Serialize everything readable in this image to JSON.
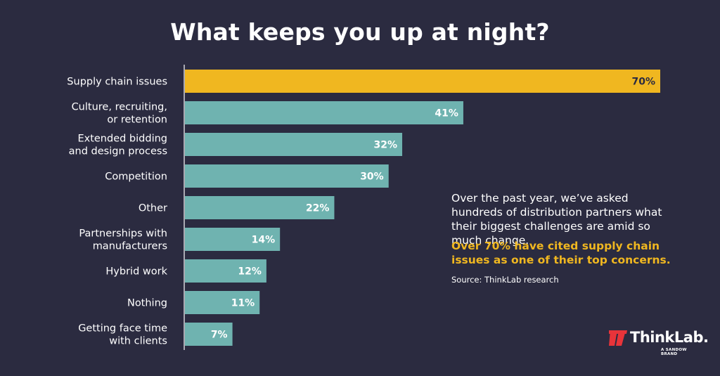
{
  "colors": {
    "background": "#2b2b40",
    "highlight_bar": "#f0b720",
    "bar": "#6fb3b0",
    "text": "#ffffff",
    "highlight_label_text": "#2b2b40",
    "accent_text": "#f0b720",
    "logo_red": "#e8343a"
  },
  "chart_data": {
    "type": "bar",
    "orientation": "horizontal",
    "title": "What keeps you up at night?",
    "categories": [
      [
        "Supply chain issues"
      ],
      [
        "Culture, recruiting,",
        "or retention"
      ],
      [
        "Extended bidding",
        "and design process"
      ],
      [
        "Competition"
      ],
      [
        "Other"
      ],
      [
        "Partnerships with",
        "manufacturers"
      ],
      [
        "Hybrid work"
      ],
      [
        "Nothing"
      ],
      [
        "Getting face time",
        "with clients"
      ]
    ],
    "values": [
      70,
      41,
      32,
      30,
      22,
      14,
      12,
      11,
      7
    ],
    "labels": [
      "70%",
      "41%",
      "32%",
      "30%",
      "22%",
      "14%",
      "12%",
      "11%",
      "7%"
    ],
    "highlight_index": 0,
    "xlim": [
      0,
      70
    ],
    "xlabel": "",
    "ylabel": "",
    "grid": false
  },
  "note": {
    "text": "Over the past year, we’ve asked hundreds of distribution partners what their biggest challenges are amid so much change.",
    "highlight": "Over 70% have cited supply chain issues as one of their top concerns.",
    "source": "Source: ThinkLab research"
  },
  "logo": {
    "name": "ThinkLab.",
    "sub": "A SANDOW BRAND",
    "icon": "thinklab-slash-icon"
  }
}
